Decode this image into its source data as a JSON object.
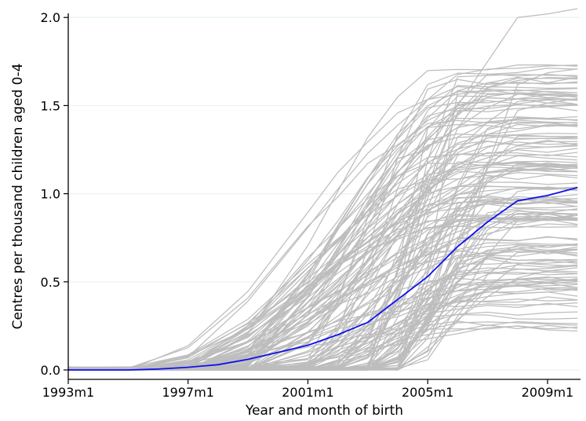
{
  "chart_data": {
    "type": "line",
    "title": "",
    "xlabel": "Year and month of birth",
    "ylabel": "Centres per thousand children aged 0-4",
    "xlim": [
      1993.0,
      2010.1
    ],
    "ylim": [
      0.0,
      2.05
    ],
    "x_ticks": [
      {
        "value": 1993.0,
        "label": "1993m1"
      },
      {
        "value": 1997.0,
        "label": "1997m1"
      },
      {
        "value": 2001.0,
        "label": "2001m1"
      },
      {
        "value": 2005.0,
        "label": "2005m1"
      },
      {
        "value": 2009.0,
        "label": "2009m1"
      }
    ],
    "y_ticks": [
      {
        "value": 0.0,
        "label": "0.0"
      },
      {
        "value": 0.5,
        "label": "0.5"
      },
      {
        "value": 1.0,
        "label": "1.0"
      },
      {
        "value": 1.5,
        "label": "1.5"
      },
      {
        "value": 2.0,
        "label": "2.0"
      }
    ],
    "grid": "horizontal",
    "colors": {
      "background": "#ffffff",
      "grid": "#eaf2f3",
      "axis": "#000000",
      "individual_lines": "#bdbdbd",
      "mean_line": "#1010ee"
    },
    "individual_series": {
      "count": 150,
      "x": [
        1993.0,
        1995.0,
        1997.0,
        1999.0,
        2001.0,
        2002.0,
        2003.0,
        2004.0,
        2005.0,
        2006.0,
        2007.0,
        2008.0,
        2009.0,
        2010.0
      ],
      "start_year_range": [
        1995.0,
        2004.5
      ],
      "final_value_range": [
        0.23,
        2.05
      ],
      "highest_series": [
        0,
        0,
        0.02,
        0.25,
        0.5,
        0.8,
        1.0,
        1.2,
        1.25,
        1.5,
        1.75,
        2.0,
        2.02,
        2.05
      ]
    },
    "series": [
      {
        "x": [
          1993.0,
          1995.0,
          1996.0,
          1997.0,
          1998.0,
          1999.0,
          2000.0,
          2001.0,
          2002.0,
          2003.0,
          2004.0,
          2005.0,
          2006.0,
          2007.0,
          2008.0,
          2009.0,
          2010.0
        ],
        "values": [
          0.0,
          0.0,
          0.005,
          0.015,
          0.03,
          0.06,
          0.1,
          0.14,
          0.2,
          0.27,
          0.4,
          0.53,
          0.7,
          0.84,
          0.96,
          0.99,
          1.035
        ]
      }
    ]
  }
}
